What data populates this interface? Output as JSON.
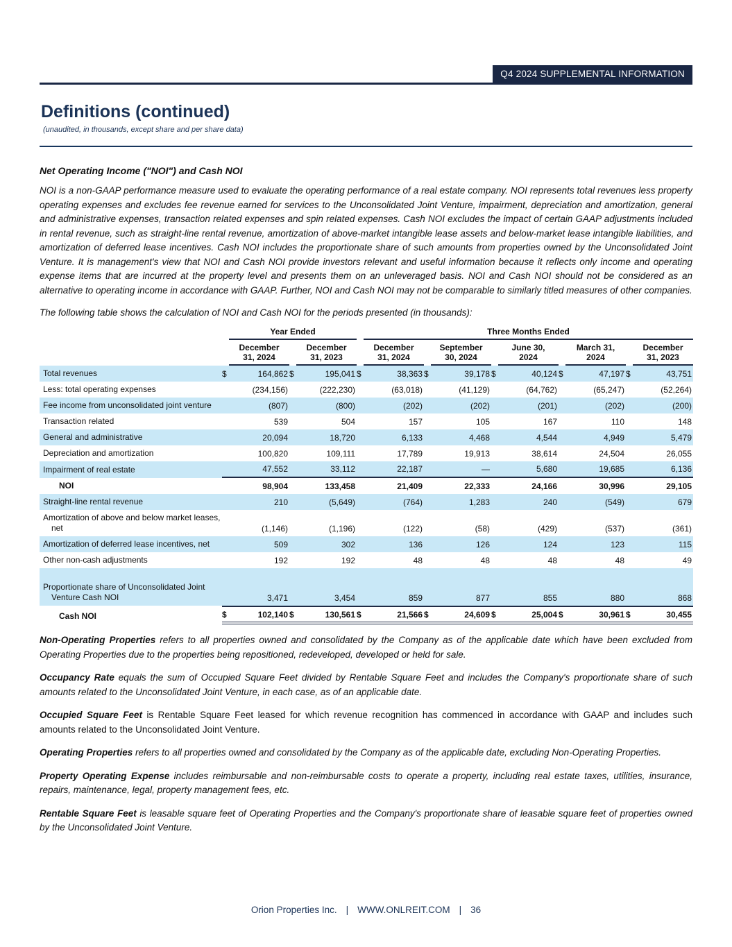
{
  "page": {
    "badge": "Q4 2024 SUPPLEMENTAL INFORMATION",
    "title": "Definitions (continued)",
    "subtitle": "(unaudited, in thousands, except share and per share data)"
  },
  "noi_section": {
    "heading": "Net Operating Income (\"NOI\") and Cash NOI",
    "body": "NOI is a non-GAAP performance measure used to evaluate the operating performance of a real estate company. NOI represents total revenues less property operating expenses and excludes fee revenue earned for services to the Unconsolidated Joint Venture, impairment, depreciation and amortization, general and administrative expenses, transaction related expenses and spin related expenses. Cash NOI excludes the impact of certain GAAP adjustments included in rental revenue, such as straight-line rental revenue, amortization of above-market intangible lease assets and below-market lease intangible liabilities, and amortization of deferred lease incentives. Cash NOI includes the proportionate share of such amounts from properties owned by the Unconsolidated Joint Venture. It is management's view that NOI and Cash NOI provide investors relevant and useful information because it reflects only income and operating expense items that are incurred at the property level and presents them on an unleveraged basis. NOI and Cash NOI should not be considered as an alternative to operating income in accordance with GAAP. Further, NOI and Cash NOI may not be comparable to similarly titled measures of other companies.",
    "table_intro": "The following table shows the calculation of NOI and Cash NOI for the periods presented (in thousands):"
  },
  "table": {
    "group_headers": [
      {
        "label": "Year Ended",
        "span": 2
      },
      {
        "label": "Three Months Ended",
        "span": 5
      }
    ],
    "column_headers": [
      "December\n31, 2024",
      "December\n31, 2023",
      "December\n31, 2024",
      "September\n30, 2024",
      "June 30,\n2024",
      "March 31,\n2024",
      "December\n31, 2023"
    ],
    "rows": [
      {
        "label": "Total revenues",
        "shade": true,
        "dollar": true,
        "values": [
          "164,862",
          "195,041",
          "38,363",
          "39,178",
          "40,124",
          "47,197",
          "43,751"
        ]
      },
      {
        "label": "Less: total operating expenses",
        "shade": false,
        "values": [
          "(234,156)",
          "(222,230)",
          "(63,018)",
          "(41,129)",
          "(64,762)",
          "(65,247)",
          "(52,264)"
        ]
      },
      {
        "label": "Fee income from unconsolidated joint venture",
        "shade": true,
        "values": [
          "(807)",
          "(800)",
          "(202)",
          "(202)",
          "(201)",
          "(202)",
          "(200)"
        ]
      },
      {
        "label": "Transaction related",
        "shade": false,
        "values": [
          "539",
          "504",
          "157",
          "105",
          "167",
          "110",
          "148"
        ]
      },
      {
        "label": "General and administrative",
        "shade": true,
        "values": [
          "20,094",
          "18,720",
          "6,133",
          "4,468",
          "4,544",
          "4,949",
          "5,479"
        ]
      },
      {
        "label": "Depreciation and amortization",
        "shade": false,
        "values": [
          "100,820",
          "109,111",
          "17,789",
          "19,913",
          "38,614",
          "24,504",
          "26,055"
        ]
      },
      {
        "label": "Impairment of real estate",
        "shade": true,
        "rule_below": true,
        "values": [
          "47,552",
          "33,112",
          "22,187",
          "—",
          "5,680",
          "19,685",
          "6,136"
        ]
      },
      {
        "label": "NOI",
        "shade": false,
        "bold": true,
        "indent": true,
        "values": [
          "98,904",
          "133,458",
          "21,409",
          "22,333",
          "24,166",
          "30,996",
          "29,105"
        ]
      },
      {
        "label": "Straight-line rental revenue",
        "shade": true,
        "values": [
          "210",
          "(5,649)",
          "(764)",
          "1,283",
          "240",
          "(549)",
          "679"
        ]
      },
      {
        "label": "Amortization of above and below market leases, net",
        "shade": false,
        "values": [
          "(1,146)",
          "(1,196)",
          "(122)",
          "(58)",
          "(429)",
          "(537)",
          "(361)"
        ]
      },
      {
        "label": "Amortization of deferred lease incentives, net",
        "shade": true,
        "values": [
          "509",
          "302",
          "136",
          "126",
          "124",
          "123",
          "115"
        ]
      },
      {
        "label": "Other non-cash adjustments",
        "shade": false,
        "values": [
          "192",
          "192",
          "48",
          "48",
          "48",
          "48",
          "49"
        ]
      },
      {
        "label": "",
        "shade": true,
        "spacer": true,
        "values": null
      },
      {
        "label": "Proportionate share of Unconsolidated Joint Venture Cash NOI",
        "shade": true,
        "values": [
          "3,471",
          "3,454",
          "859",
          "877",
          "855",
          "880",
          "868"
        ]
      },
      {
        "label": "Cash NOI",
        "shade": false,
        "bold": true,
        "indent": true,
        "dollar": true,
        "total": true,
        "values": [
          "102,140",
          "130,561",
          "21,566",
          "24,609",
          "25,004",
          "30,961",
          "30,455"
        ]
      }
    ]
  },
  "definitions": [
    {
      "term": "Non-Operating Properties",
      "body": "refers to all properties owned and consolidated by the Company as of the applicable date which have been excluded from Operating Properties due to the properties being repositioned, redeveloped, developed or held for sale.",
      "italic": true
    },
    {
      "term": "Occupancy Rate",
      "body": "equals the sum of Occupied Square Feet divided by Rentable Square Feet and includes the Company's proportionate share of such amounts related to the Unconsolidated Joint Venture, in each case, as of an applicable date.",
      "italic": true
    },
    {
      "term": "Occupied Square Feet",
      "body": "is Rentable Square Feet leased for which revenue recognition has commenced in accordance with GAAP and includes such amounts related to the Unconsolidated Joint Venture.",
      "italic": false
    },
    {
      "term": "Operating Properties",
      "body": "refers to all properties owned and consolidated by the Company as of the applicable date, excluding Non-Operating Properties.",
      "italic": true
    },
    {
      "term": "Property Operating Expense",
      "body": "includes reimbursable and non-reimbursable costs to operate a property, including real estate taxes, utilities, insurance, repairs, maintenance, legal, property management fees, etc.",
      "italic": true
    },
    {
      "term": "Rentable Square Feet",
      "body": "is leasable square feet of Operating Properties and the Company's proportionate share of leasable square feet of properties owned by the Unconsolidated Joint Venture.",
      "italic": true
    }
  ],
  "footer": {
    "company": "Orion Properties Inc.",
    "website": "WWW.ONLREIT.COM",
    "page_number": "36"
  }
}
